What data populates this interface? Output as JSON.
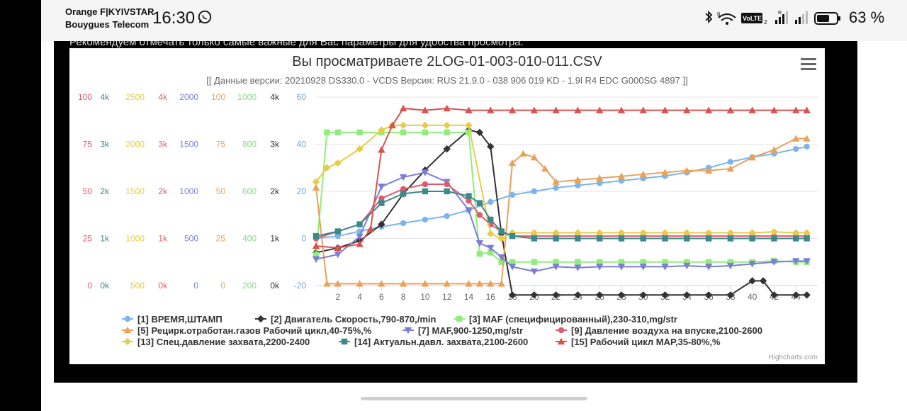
{
  "status_bar": {
    "carrier_1": "Orange F|KYIVSTAR",
    "carrier_2": "Bouygues Telecom",
    "time": "16:30",
    "battery_percent": "63 %",
    "icons": [
      "whatsapp-icon",
      "bluetooth-icon",
      "wifi-6-icon",
      "volte-icon",
      "signal-r-icon",
      "signal-icon",
      "battery-icon"
    ]
  },
  "hint_text": "Рекомендуем отмечать только самые важные для Вас параметры для удобства просмотра.",
  "chart": {
    "title": "Вы просматриваете 2LOG-01-003-010-011.CSV",
    "subtitle": "[[ Данные версии: 20210928 DS330.0 - VCDS Версия: RUS 21.9.0 - 038 906 019 KD - 1.9l R4 EDC G000SG 4897 ]]",
    "credit": "Highcharts.com",
    "menu_icon": "hamburger-menu-icon"
  },
  "chart_data": {
    "type": "line",
    "x_ticks": [
      "2",
      "4",
      "6",
      "8",
      "10",
      "12",
      "14",
      "16",
      "18",
      "20",
      "22",
      "24",
      "26",
      "28",
      "30",
      "32",
      "34",
      "36",
      "38",
      "40",
      "42",
      "44"
    ],
    "x_range": [
      0,
      46
    ],
    "axes": [
      {
        "color": "#e05a6e",
        "labels": [
          "100",
          "75",
          "50",
          "25",
          "0"
        ]
      },
      {
        "color": "#3a8a8a",
        "labels": [
          "4k",
          "3k",
          "2k",
          "1k",
          "0k"
        ]
      },
      {
        "color": "#e7cc4a",
        "labels": [
          "2500",
          "2000",
          "1500",
          "1000",
          "500"
        ]
      },
      {
        "color": "#e05a6e",
        "labels": [
          "4k",
          "3k",
          "2k",
          "1k",
          "0k"
        ]
      },
      {
        "color": "#7b7ed8",
        "labels": [
          "2000",
          "1500",
          "1000",
          "500",
          "0"
        ]
      },
      {
        "color": "#e8a25a",
        "labels": [
          "100",
          "75",
          "50",
          "25",
          "0"
        ]
      },
      {
        "color": "#8fd88a",
        "labels": [
          "1000",
          "800",
          "600",
          "400",
          "200"
        ]
      },
      {
        "color": "#333333",
        "labels": [
          "4k",
          "3k",
          "2k",
          "1k",
          "0k"
        ]
      },
      {
        "color": "#6fa3d8",
        "labels": [
          "60",
          "40",
          "20",
          "0",
          "-20"
        ]
      }
    ],
    "series": [
      {
        "name": "[1] ВРЕМЯ,ШТАМП",
        "color": "#7cb5ec",
        "marker": "circle",
        "x": [
          0,
          2,
          4,
          6,
          8,
          10,
          12,
          14,
          16,
          18,
          20,
          22,
          24,
          26,
          28,
          30,
          32,
          34,
          36,
          38,
          40,
          42,
          44,
          45
        ],
        "y": [
          0,
          1,
          3,
          5,
          6.5,
          8,
          9.5,
          12,
          15.5,
          18.5,
          20,
          21.5,
          22.5,
          23.5,
          24.5,
          25.5,
          26.5,
          28,
          30,
          32.5,
          34.5,
          36,
          38,
          39
        ]
      },
      {
        "name": "[2] Двигатель Скорость,790-870,/min",
        "color": "#333333",
        "marker": "diamond",
        "x": [
          0,
          2,
          4,
          6,
          8,
          10,
          12,
          14,
          15,
          16,
          17,
          18,
          20,
          22,
          24,
          26,
          28,
          30,
          32,
          34,
          36,
          38,
          40,
          41,
          42,
          44,
          45
        ],
        "y": [
          700,
          800,
          950,
          1300,
          1950,
          2450,
          2900,
          3300,
          3250,
          2950,
          1100,
          -200,
          -200,
          -200,
          -200,
          -200,
          -200,
          -200,
          -200,
          -200,
          -200,
          -200,
          100,
          100,
          -200,
          -200,
          -200
        ]
      },
      {
        "name": "[3] MAF (специфицированный),230-310,mg/str",
        "color": "#90ed7d",
        "marker": "square",
        "x": [
          0,
          1,
          2,
          4,
          6,
          8,
          10,
          12,
          14,
          15,
          16,
          17,
          18,
          20,
          22,
          24,
          26,
          28,
          30,
          32,
          34,
          36,
          38,
          40,
          42,
          44,
          45
        ],
        "y": [
          330,
          850,
          850,
          850,
          850,
          850,
          850,
          850,
          850,
          335,
          340,
          300,
          300,
          300,
          300,
          300,
          300,
          300,
          300,
          300,
          300,
          300,
          300,
          300,
          305,
          300,
          300
        ]
      },
      {
        "name": "[5] Рецирк.отработан.газов Рабочий цикл,40-75%,%",
        "color": "#e8a25a",
        "marker": "triangle",
        "x": [
          0,
          1,
          2,
          4,
          6,
          8,
          10,
          12,
          14,
          15,
          16,
          17,
          18,
          19,
          20,
          21,
          22,
          24,
          26,
          28,
          30,
          32,
          34,
          36,
          38,
          40,
          42,
          44,
          45
        ],
        "y": [
          52,
          1,
          1,
          1,
          1,
          1,
          1,
          1,
          1,
          1,
          1,
          1,
          65,
          70,
          68,
          62,
          55,
          56,
          57,
          58,
          59,
          60,
          61,
          61,
          62,
          68,
          72,
          78,
          78
        ]
      },
      {
        "name": "[7] MAF,900-1250,mg/str",
        "color": "#7b7ed8",
        "marker": "triangle-down",
        "x": [
          0,
          2,
          4,
          6,
          8,
          10,
          12,
          14,
          15,
          16,
          17,
          18,
          20,
          22,
          24,
          26,
          28,
          30,
          32,
          34,
          36,
          38,
          40,
          42,
          44,
          45
        ],
        "y": [
          280,
          330,
          520,
          1050,
          1150,
          1200,
          1100,
          800,
          450,
          400,
          300,
          200,
          150,
          200,
          190,
          200,
          200,
          200,
          200,
          210,
          200,
          210,
          230,
          250,
          260,
          260
        ]
      },
      {
        "name": "[9] Давление воздуха на впуске,2100-2600",
        "color": "#e05a6e",
        "marker": "circle",
        "x": [
          0,
          2,
          4,
          6,
          8,
          10,
          12,
          14,
          15,
          16,
          17,
          18,
          20,
          22,
          24,
          26,
          28,
          30,
          32,
          34,
          36,
          38,
          40,
          42,
          44,
          45
        ],
        "y": [
          1000,
          1150,
          1300,
          1850,
          2050,
          2150,
          2150,
          1800,
          1500,
          1300,
          1150,
          1050,
          1050,
          1050,
          1050,
          1050,
          1050,
          1050,
          1050,
          1050,
          1050,
          1050,
          1050,
          1050,
          1050,
          1050
        ]
      },
      {
        "name": "[13] Спец.давление захвата,2200-2400",
        "color": "#e7cc4a",
        "marker": "diamond",
        "x": [
          0,
          1,
          2,
          4,
          6,
          7,
          8,
          10,
          12,
          14,
          16,
          17,
          18,
          20,
          22,
          24,
          26,
          28,
          30,
          32,
          34,
          36,
          38,
          40,
          42,
          44,
          45
        ],
        "y": [
          1600,
          1750,
          1800,
          1950,
          2150,
          2200,
          2200,
          2200,
          2200,
          2200,
          1050,
          1000,
          1060,
          1060,
          1060,
          1060,
          1060,
          1060,
          1060,
          1060,
          1060,
          1060,
          1060,
          1060,
          1070,
          1060,
          1060
        ]
      },
      {
        "name": "[14] Актуальн.давл. захвата,2100-2600",
        "color": "#3a8a8a",
        "marker": "square",
        "x": [
          0,
          2,
          4,
          6,
          8,
          10,
          12,
          14,
          15,
          16,
          17,
          18,
          20,
          22,
          24,
          26,
          28,
          30,
          32,
          34,
          36,
          38,
          40,
          42,
          44,
          45
        ],
        "y": [
          1050,
          1150,
          1300,
          1750,
          1950,
          2000,
          2000,
          1900,
          1750,
          1400,
          1150,
          1050,
          1000,
          1000,
          1000,
          1000,
          1000,
          1000,
          1000,
          1000,
          1000,
          1000,
          1000,
          1000,
          1000,
          1000
        ]
      },
      {
        "name": "[15] Рабочий цикл MAP,35-80%,%",
        "color": "#d9534f",
        "marker": "triangle",
        "x": [
          0,
          2,
          4,
          5,
          6,
          7,
          8,
          10,
          12,
          14,
          16,
          18,
          20,
          22,
          24,
          26,
          28,
          30,
          32,
          34,
          36,
          38,
          40,
          42,
          44,
          45
        ],
        "y": [
          21,
          20,
          22,
          30,
          72,
          85,
          94,
          93,
          94,
          93,
          93,
          93,
          93,
          93,
          93,
          93,
          93,
          93,
          93,
          93,
          93,
          93,
          93,
          93,
          93,
          93
        ]
      }
    ],
    "legend_position": "bottom"
  },
  "colors": {
    "frame": "#000000",
    "chart_bg": "#ffffff",
    "grid": "#e6e6e6"
  }
}
